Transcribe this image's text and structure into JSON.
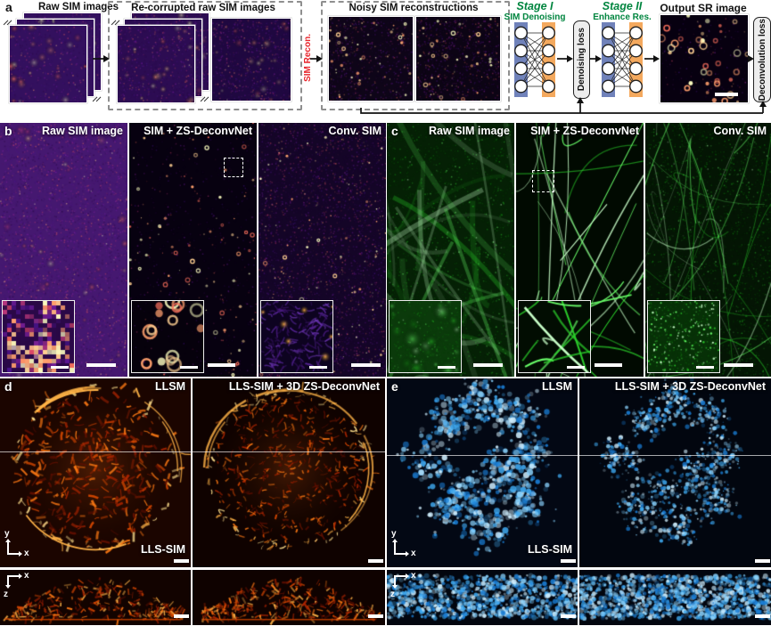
{
  "axis_labels": {
    "x": "x",
    "y": "y",
    "z": "z"
  },
  "panel_a": {
    "label": "a",
    "raw_title": "Raw SIM images",
    "recorrupted_title": "Re-corrupted raw SIM images",
    "noisy_title": "Noisy SIM reconstructions",
    "sim_recon_label": "SIM Recon.",
    "stage1_title": "Stage I",
    "stage1_subtitle": "SIM Denoising",
    "denoising_loss_label": "Denoising loss",
    "stage2_title": "Stage II",
    "stage2_subtitle": "Enhance Res.",
    "output_title": "Output SR image",
    "deconvolution_loss_label": "Deconvolution loss"
  },
  "panel_b": {
    "label": "b",
    "captions": [
      "Raw SIM image",
      "SIM + ZS-DeconvNet",
      "Conv. SIM"
    ]
  },
  "panel_c": {
    "label": "c",
    "captions": [
      "Raw SIM image",
      "SIM + ZS-DeconvNet",
      "Conv. SIM"
    ]
  },
  "panel_d": {
    "label": "d",
    "left_caption": "LLSM",
    "right_caption": "LLS-SIM + 3D ZS-DeconvNet",
    "mode_label": "LLS-SIM"
  },
  "panel_e": {
    "label": "e",
    "left_caption": "LLSM",
    "right_caption": "LLS-SIM + 3D ZS-DeconvNet",
    "mode_label": "LLS-SIM"
  },
  "colors": {
    "stage_green": "#00853f",
    "recon_red": "#e8252c",
    "net_blue": "#7082ba",
    "net_orange": "#f4a95e"
  }
}
